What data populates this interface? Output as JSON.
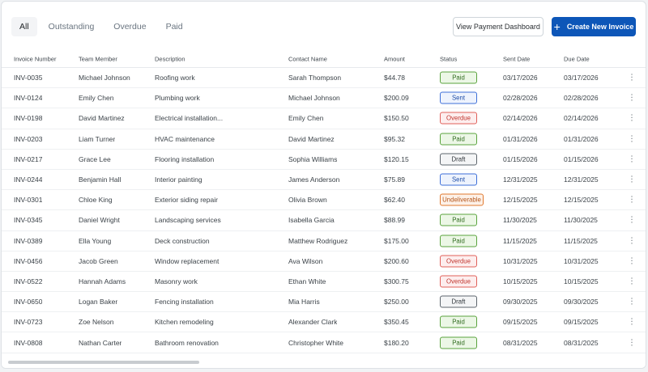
{
  "tabs": [
    {
      "label": "All",
      "active": true
    },
    {
      "label": "Outstanding",
      "active": false
    },
    {
      "label": "Overdue",
      "active": false
    },
    {
      "label": "Paid",
      "active": false
    }
  ],
  "actions": {
    "view_dashboard_label": "View Payment Dashboard",
    "create_invoice_label": "Create New Invoice",
    "create_icon": "plus-icon"
  },
  "table": {
    "headers": [
      "Invoice Number",
      "Team Member",
      "Description",
      "Contact Name",
      "Amount",
      "Status",
      "Sent Date",
      "Due Date"
    ],
    "rows": [
      {
        "invoice": "INV-0035",
        "member": "Michael Johnson",
        "description": "Roofing work",
        "contact": "Sarah Thompson",
        "amount": "$44.78",
        "status": "Paid",
        "sent": "03/17/2026",
        "due": "03/17/2026"
      },
      {
        "invoice": "INV-0124",
        "member": "Emily Chen",
        "description": "Plumbing work",
        "contact": "Michael Johnson",
        "amount": "$200.09",
        "status": "Sent",
        "sent": "02/28/2026",
        "due": "02/28/2026"
      },
      {
        "invoice": "INV-0198",
        "member": "David Martinez",
        "description": "Electrical installation...",
        "contact": "Emily Chen",
        "amount": "$150.50",
        "status": "Overdue",
        "sent": "02/14/2026",
        "due": "02/14/2026"
      },
      {
        "invoice": "INV-0203",
        "member": "Liam Turner",
        "description": "HVAC maintenance",
        "contact": "David Martinez",
        "amount": "$95.32",
        "status": "Paid",
        "sent": "01/31/2026",
        "due": "01/31/2026"
      },
      {
        "invoice": "INV-0217",
        "member": "Grace Lee",
        "description": "Flooring installation",
        "contact": "Sophia Williams",
        "amount": "$120.15",
        "status": "Draft",
        "sent": "01/15/2026",
        "due": "01/15/2026"
      },
      {
        "invoice": "INV-0244",
        "member": "Benjamin Hall",
        "description": "Interior painting",
        "contact": "James Anderson",
        "amount": "$75.89",
        "status": "Sent",
        "sent": "12/31/2025",
        "due": "12/31/2025"
      },
      {
        "invoice": "INV-0301",
        "member": "Chloe King",
        "description": "Exterior siding repair",
        "contact": "Olivia Brown",
        "amount": "$62.40",
        "status": "Undeliverable",
        "sent": "12/15/2025",
        "due": "12/15/2025"
      },
      {
        "invoice": "INV-0345",
        "member": "Daniel Wright",
        "description": "Landscaping services",
        "contact": "Isabella Garcia",
        "amount": "$88.99",
        "status": "Paid",
        "sent": "11/30/2025",
        "due": "11/30/2025"
      },
      {
        "invoice": "INV-0389",
        "member": "Ella Young",
        "description": "Deck construction",
        "contact": "Matthew Rodriguez",
        "amount": "$175.00",
        "status": "Paid",
        "sent": "11/15/2025",
        "due": "11/15/2025"
      },
      {
        "invoice": "INV-0456",
        "member": "Jacob Green",
        "description": "Window replacement",
        "contact": "Ava Wilson",
        "amount": "$200.60",
        "status": "Overdue",
        "sent": "10/31/2025",
        "due": "10/31/2025"
      },
      {
        "invoice": "INV-0522",
        "member": "Hannah Adams",
        "description": "Masonry work",
        "contact": "Ethan White",
        "amount": "$300.75",
        "status": "Overdue",
        "sent": "10/15/2025",
        "due": "10/15/2025"
      },
      {
        "invoice": "INV-0650",
        "member": "Logan Baker",
        "description": "Fencing installation",
        "contact": "Mia Harris",
        "amount": "$250.00",
        "status": "Draft",
        "sent": "09/30/2025",
        "due": "09/30/2025"
      },
      {
        "invoice": "INV-0723",
        "member": "Zoe Nelson",
        "description": "Kitchen remodeling",
        "contact": "Alexander Clark",
        "amount": "$350.45",
        "status": "Paid",
        "sent": "09/15/2025",
        "due": "09/15/2025"
      },
      {
        "invoice": "INV-0808",
        "member": "Nathan Carter",
        "description": "Bathroom renovation",
        "contact": "Christopher White",
        "amount": "$180.20",
        "status": "Paid",
        "sent": "08/31/2025",
        "due": "08/31/2025"
      }
    ],
    "row_action_icon": "more-vertical-icon"
  },
  "colors": {
    "primary": "#0d56b8",
    "paid": "#5aa33d",
    "sent": "#3d6fd8",
    "overdue": "#e0605a",
    "draft": "#5d656c",
    "undeliverable": "#e0782e"
  }
}
